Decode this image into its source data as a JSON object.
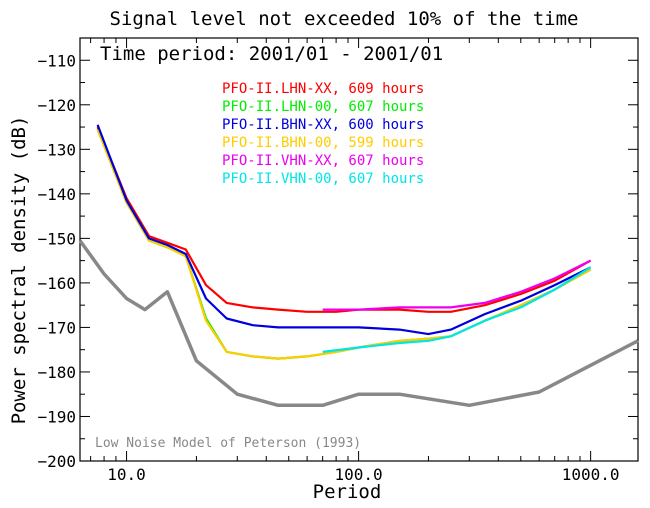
{
  "chart_data": {
    "type": "line",
    "title": "Signal level not exceeded 10% of the time",
    "subtitle": "Time period: 2001/01 - 2001/01",
    "xlabel": "Period",
    "ylabel": "Power spectral density (dB)",
    "x_scale": "log",
    "xlim": [
      6.3,
      1600
    ],
    "ylim": [
      -200,
      -105
    ],
    "x_ticks": [
      {
        "value": 10,
        "label": "10.0"
      },
      {
        "value": 100,
        "label": "100.0"
      },
      {
        "value": 1000,
        "label": "1000.0"
      }
    ],
    "y_ticks": [
      {
        "value": -110,
        "label": "−110"
      },
      {
        "value": -120,
        "label": "−120"
      },
      {
        "value": -130,
        "label": "−130"
      },
      {
        "value": -140,
        "label": "−140"
      },
      {
        "value": -150,
        "label": "−150"
      },
      {
        "value": -160,
        "label": "−160"
      },
      {
        "value": -170,
        "label": "−170"
      },
      {
        "value": -180,
        "label": "−180"
      },
      {
        "value": -190,
        "label": "−190"
      },
      {
        "value": -200,
        "label": "−200"
      }
    ],
    "grid": false,
    "legend_position": "top-center",
    "series": [
      {
        "name": "PFO-II.LHN-XX, 609 hours",
        "color": "#ff0000",
        "x": [
          7.5,
          10,
          12.5,
          15,
          18,
          22,
          27,
          35,
          45,
          60,
          80,
          100,
          150,
          200,
          250,
          350,
          500,
          700,
          1000
        ],
        "y": [
          -125,
          -141,
          -149.5,
          -151,
          -152.5,
          -160.5,
          -164.5,
          -165.5,
          -166,
          -166.5,
          -166.5,
          -166,
          -166,
          -166.5,
          -166.5,
          -165,
          -162.5,
          -159.5,
          -155
        ]
      },
      {
        "name": "PFO-II.LHN-00, 607 hours",
        "color": "#00ee00",
        "x": [
          7.5,
          10,
          12.5,
          15,
          18,
          22,
          27,
          35,
          45,
          60,
          80,
          100,
          150,
          200,
          250,
          350,
          500,
          700,
          1000
        ],
        "y": [
          -125.5,
          -142,
          -150.5,
          -152,
          -154,
          -168,
          -175.5,
          -176.5,
          -177,
          -176.5,
          -175.5,
          -174.5,
          -173,
          -172.5,
          -172,
          -168.5,
          -165,
          -161.5,
          -157
        ]
      },
      {
        "name": "PFO-II.BHN-XX, 600 hours",
        "color": "#0000dd",
        "x": [
          7.5,
          10,
          12.5,
          15,
          18,
          22,
          27,
          35,
          45,
          60,
          80,
          100,
          150,
          200,
          250,
          350,
          500,
          700,
          1000
        ],
        "y": [
          -124.5,
          -141.5,
          -150,
          -151.5,
          -153.5,
          -163.5,
          -168,
          -169.5,
          -170,
          -170,
          -170,
          -170,
          -170.5,
          -171.5,
          -170.5,
          -167,
          -164,
          -160.5,
          -156.5
        ]
      },
      {
        "name": "PFO-II.BHN-00, 599 hours",
        "color": "#ffcc00",
        "x": [
          7.5,
          10,
          12.5,
          15,
          18,
          22,
          27,
          35,
          45,
          60,
          80,
          100,
          150,
          200,
          250,
          350,
          500,
          700,
          1000
        ],
        "y": [
          -125.5,
          -142,
          -150.5,
          -152,
          -154,
          -168.5,
          -175.5,
          -176.5,
          -177,
          -176.5,
          -175.5,
          -174.5,
          -173,
          -172.5,
          -172,
          -168.5,
          -165,
          -161.5,
          -157
        ]
      },
      {
        "name": "PFO-II.VHN-XX, 607 hours",
        "color": "#ee00ee",
        "x": [
          70,
          100,
          150,
          200,
          250,
          350,
          500,
          700,
          1000
        ],
        "y": [
          -166,
          -166,
          -165.5,
          -165.5,
          -165.5,
          -164.5,
          -162,
          -159,
          -155
        ]
      },
      {
        "name": "PFO-II.VHN-00, 607 hours",
        "color": "#00e5e5",
        "x": [
          70,
          100,
          150,
          200,
          250,
          350,
          500,
          700,
          1000
        ],
        "y": [
          -175.5,
          -174.5,
          -173.5,
          -173,
          -172,
          -168.5,
          -165.5,
          -161.5,
          -156.5
        ]
      }
    ],
    "reference_curve": {
      "label": "Low Noise Model of Peterson (1993)",
      "color": "#888888",
      "x": [
        6.3,
        8,
        10,
        12,
        15,
        20,
        30,
        45,
        70,
        100,
        150,
        300,
        600,
        1000,
        1600
      ],
      "y": [
        -150.5,
        -158,
        -163.5,
        -166,
        -162,
        -177.5,
        -185,
        -187.5,
        -187.5,
        -185,
        -185,
        -187.5,
        -184.5,
        -178.5,
        -173
      ]
    }
  }
}
